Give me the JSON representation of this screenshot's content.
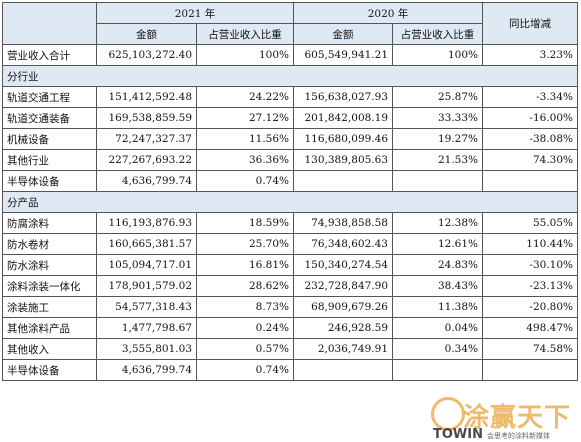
{
  "header": {
    "year_2021": "2021 年",
    "year_2020": "2020 年",
    "yoy": "同比增减",
    "amount": "金额",
    "share": "占营业收入比重"
  },
  "total": {
    "label": "营业收入合计",
    "a21": "625,103,272.40",
    "s21": "100%",
    "a20": "605,549,941.21",
    "s20": "100%",
    "yoy": "3.23%"
  },
  "sections": [
    {
      "title": "分行业",
      "rows": [
        {
          "label": "轨道交通工程",
          "a21": "151,412,592.48",
          "s21": "24.22%",
          "a20": "156,638,027.93",
          "s20": "25.87%",
          "yoy": "-3.34%"
        },
        {
          "label": "轨道交通装备",
          "a21": "169,538,859.59",
          "s21": "27.12%",
          "a20": "201,842,008.19",
          "s20": "33.33%",
          "yoy": "-16.00%"
        },
        {
          "label": "机械设备",
          "a21": "72,247,327.37",
          "s21": "11.56%",
          "a20": "116,680,099.46",
          "s20": "19.27%",
          "yoy": "-38.08%"
        },
        {
          "label": "其他行业",
          "a21": "227,267,693.22",
          "s21": "36.36%",
          "a20": "130,389,805.63",
          "s20": "21.53%",
          "yoy": "74.30%"
        },
        {
          "label": "半导体设备",
          "a21": "4,636,799.74",
          "s21": "0.74%",
          "a20": "",
          "s20": "",
          "yoy": ""
        }
      ]
    },
    {
      "title": "分产品",
      "rows": [
        {
          "label": "防腐涂料",
          "a21": "116,193,876.93",
          "s21": "18.59%",
          "a20": "74,938,858.58",
          "s20": "12.38%",
          "yoy": "55.05%"
        },
        {
          "label": "防水卷材",
          "a21": "160,665,381.57",
          "s21": "25.70%",
          "a20": "76,348,602.43",
          "s20": "12.61%",
          "yoy": "110.44%"
        },
        {
          "label": "防水涂料",
          "a21": "105,094,717.01",
          "s21": "16.81%",
          "a20": "150,340,274.54",
          "s20": "24.83%",
          "yoy": "-30.10%"
        },
        {
          "label": "涂料涂装一体化",
          "a21": "178,901,579.02",
          "s21": "28.62%",
          "a20": "232,728,847.90",
          "s20": "38.43%",
          "yoy": "-23.13%"
        },
        {
          "label": "涂装施工",
          "a21": "54,577,318.43",
          "s21": "8.73%",
          "a20": "68,909,679.26",
          "s20": "11.38%",
          "yoy": "-20.80%"
        },
        {
          "label": "其他涂料产品",
          "a21": "1,477,798.67",
          "s21": "0.24%",
          "a20": "246,928.59",
          "s20": "0.04%",
          "yoy": "498.47%"
        },
        {
          "label": "其他收入",
          "a21": "3,555,801.03",
          "s21": "0.57%",
          "a20": "2,036,749.91",
          "s20": "0.34%",
          "yoy": "74.58%"
        },
        {
          "label": "半导体设备",
          "a21": "4,636,799.74",
          "s21": "0.74%",
          "a20": "",
          "s20": "",
          "yoy": ""
        }
      ]
    }
  ],
  "watermark": {
    "main": "涂赢天下",
    "brand": "TOWIN",
    "slogan": "会思考的涂料新媒体",
    "accent": "#e9a43a"
  }
}
